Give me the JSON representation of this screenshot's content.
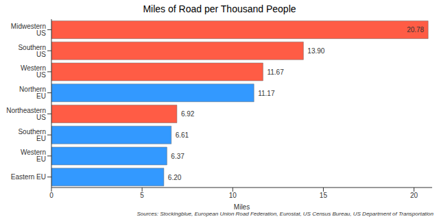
{
  "chart_data": {
    "type": "bar",
    "title": "Miles of Road per Thousand People",
    "orientation": "horizontal",
    "categories": [
      "Midwestern US",
      "Southern US",
      "Western US",
      "Northern EU",
      "Northeastern US",
      "Southern EU",
      "Western EU",
      "Eastern EU"
    ],
    "values": [
      20.78,
      13.9,
      11.67,
      11.17,
      6.92,
      6.61,
      6.37,
      6.2
    ],
    "value_labels": [
      "20.78",
      "13.90",
      "11.67",
      "11.17",
      "6.92",
      "6.61",
      "6.37",
      "6.20"
    ],
    "data_labels": true,
    "colors": [
      "#ff5c45",
      "#ff5c45",
      "#ff5c45",
      "#3399ff",
      "#ff5c45",
      "#3399ff",
      "#3399ff",
      "#3399ff"
    ],
    "x_label": "Miles",
    "xlim": [
      0,
      21
    ],
    "xticks": [
      0,
      5,
      10,
      15,
      20
    ],
    "grid": false,
    "annotations": [
      "Sources: Stockingblue, European Union Road Federation, Eurostat, US Census Bureau, US Department of Transportation"
    ]
  }
}
